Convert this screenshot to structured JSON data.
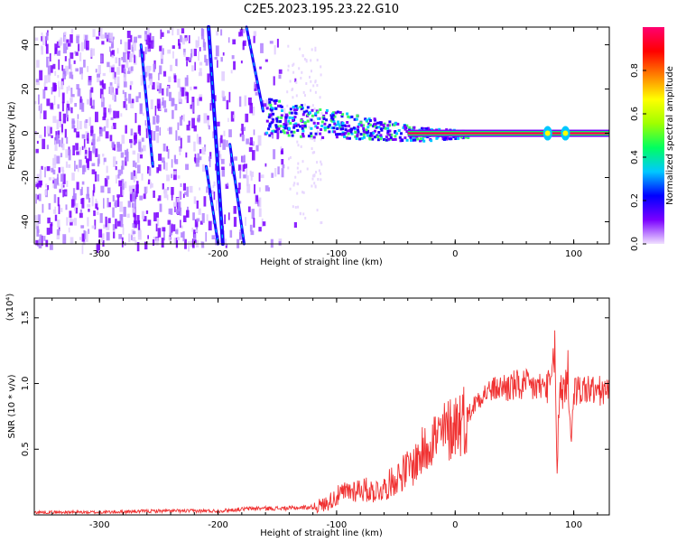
{
  "title": "C2E5.2023.195.23.22.G10",
  "chart_data": [
    {
      "type": "heatmap",
      "xlabel": "Height of straight line (km)",
      "ylabel": "Frequency (Hz)",
      "xlim": [
        -355,
        130
      ],
      "ylim": [
        -50,
        48
      ],
      "x_ticks": [
        -300,
        -200,
        -100,
        0,
        100
      ],
      "x_tick_labels": [
        "-300",
        "-200",
        "-100",
        "0",
        "100"
      ],
      "y_ticks": [
        -40,
        -20,
        0,
        20,
        40
      ],
      "y_tick_labels": [
        "-40",
        "-20",
        "0",
        "20",
        "40"
      ],
      "colorbar": {
        "label": "Normalized spectral amplitude",
        "range": [
          0.0,
          1.0
        ],
        "ticks": [
          0.0,
          0.2,
          0.4,
          0.6,
          0.8
        ],
        "tick_labels": [
          "0.0",
          "0.2",
          "0.4",
          "0.6",
          "0.8"
        ],
        "colors": [
          "#f0e0ff",
          "#7a00ff",
          "#0000ff",
          "#00c8ff",
          "#00ff60",
          "#a0ff00",
          "#ffff00",
          "#ff8000",
          "#ff0000",
          "#ff0070"
        ]
      },
      "features": {
        "noise_region_x": [
          -355,
          -135
        ],
        "center_line_freq": 0,
        "streaks": [
          {
            "x": [
              -265,
              -255
            ],
            "y": [
              40,
              -15
            ]
          },
          {
            "x": [
              -208,
              -196
            ],
            "y": [
              48,
              -50
            ]
          },
          {
            "x": [
              -210,
              -200
            ],
            "y": [
              -15,
              -50
            ]
          },
          {
            "x": [
              -176,
              -162
            ],
            "y": [
              48,
              10
            ]
          },
          {
            "x": [
              -190,
              -178
            ],
            "y": [
              -5,
              -50
            ]
          }
        ],
        "band": {
          "x": [
            -160,
            10
          ],
          "y_start": 8,
          "y_end": 0
        },
        "hot_line": {
          "x": [
            -40,
            130
          ],
          "y": 0
        },
        "spots": [
          {
            "x": 78,
            "y": 0
          },
          {
            "x": 93,
            "y": 0
          }
        ]
      }
    },
    {
      "type": "line",
      "xlabel": "Height of straight line (km)",
      "ylabel": "SNR (10 * v/v)",
      "y_multiplier": "(x10⁴)",
      "xlim": [
        -355,
        130
      ],
      "ylim": [
        0.0,
        1.65
      ],
      "x_ticks": [
        -300,
        -200,
        -100,
        0,
        100
      ],
      "x_tick_labels": [
        "-300",
        "-200",
        "-100",
        "0",
        "100"
      ],
      "y_ticks": [
        0.5,
        1.0,
        1.5
      ],
      "y_tick_labels": [
        "0.5",
        "1.0",
        "1.5"
      ],
      "color": "#f03232",
      "series": [
        {
          "x": [
            -355,
            -300,
            -250,
            -200,
            -170,
            -140,
            -120,
            -110,
            -100,
            -90,
            -80,
            -70,
            -60,
            -50,
            -40,
            -35,
            -30,
            -25,
            -20,
            -15,
            -10,
            -5,
            0,
            5,
            10,
            15,
            20,
            30,
            40,
            50,
            60,
            70,
            80,
            84,
            86,
            88,
            92,
            96,
            98,
            100,
            105,
            110,
            120,
            130
          ],
          "y": [
            0.02,
            0.02,
            0.03,
            0.03,
            0.05,
            0.05,
            0.06,
            0.08,
            0.14,
            0.18,
            0.2,
            0.18,
            0.2,
            0.28,
            0.35,
            0.38,
            0.45,
            0.5,
            0.6,
            0.58,
            0.62,
            0.65,
            0.7,
            0.72,
            0.75,
            0.82,
            0.9,
            0.95,
            0.97,
            0.98,
            0.98,
            0.97,
            0.98,
            1.2,
            0.3,
            0.95,
            1.0,
            0.95,
            0.5,
            0.95,
            0.95,
            0.96,
            0.94,
            0.93
          ]
        }
      ]
    }
  ]
}
